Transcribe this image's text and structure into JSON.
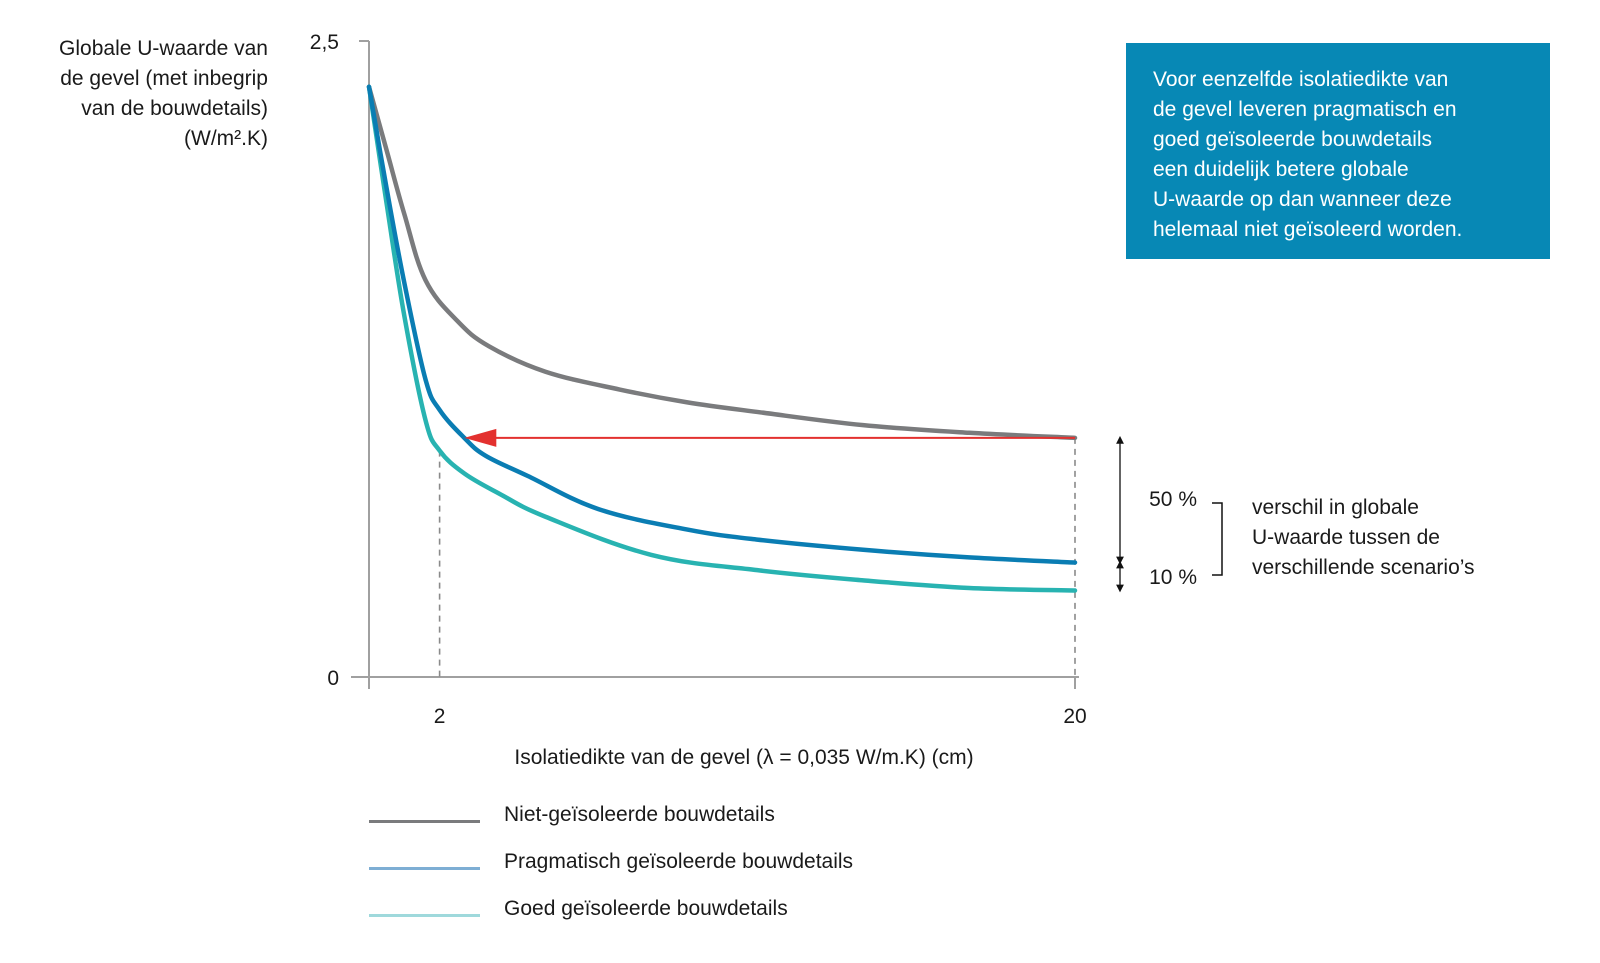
{
  "chart_data": {
    "type": "line",
    "title": "",
    "ylabel_lines": [
      "Globale U-waarde van",
      "de gevel (met inbegrip",
      "van de bouwdetails)",
      "(W/m².K)"
    ],
    "xlabel": "Isolatiedikte van de gevel (λ = 0,035 W/m.K) (cm)",
    "xlim": [
      0,
      20
    ],
    "ylim": [
      0,
      2.5
    ],
    "x_ticks": [
      {
        "value": 2,
        "label": "2"
      },
      {
        "value": 20,
        "label": "20"
      }
    ],
    "y_ticks": [
      {
        "value": 0,
        "label": "0"
      },
      {
        "value": 2.5,
        "label": "2,5"
      }
    ],
    "grid": false,
    "legend_position": "bottom-left",
    "series": [
      {
        "name": "Niet-geïsoleerde bouwdetails",
        "color": "#7a7b7d",
        "legend_color": "#7a7b7d",
        "x": [
          0,
          0.5,
          1.0,
          1.6,
          2.5,
          3.4,
          5.0,
          7.1,
          9.0,
          11.1,
          14.0,
          17.0,
          20.0
        ],
        "y": [
          2.32,
          2.07,
          1.82,
          1.56,
          1.4,
          1.3,
          1.2,
          1.13,
          1.08,
          1.04,
          0.99,
          0.96,
          0.94
        ]
      },
      {
        "name": "Pragmatisch geïsoleerde bouwdetails",
        "color": "#0a7db3",
        "legend_color": "#7eaed4",
        "x": [
          0,
          0.5,
          1.0,
          1.6,
          2.0,
          2.7,
          3.3,
          4.5,
          6.5,
          9.0,
          11.0,
          14.0,
          17.0,
          20.0
        ],
        "y": [
          2.32,
          1.92,
          1.55,
          1.17,
          1.05,
          0.94,
          0.87,
          0.79,
          0.66,
          0.58,
          0.54,
          0.5,
          0.47,
          0.45
        ]
      },
      {
        "name": "Goed geïsoleerde bouwdetails",
        "color": "#28b3b1",
        "legend_color": "#9fd9dc",
        "x": [
          0,
          0.5,
          1.0,
          1.6,
          2.0,
          2.7,
          3.7,
          5.0,
          8.0,
          11.0,
          14.0,
          17.0,
          20.0
        ],
        "y": [
          2.32,
          1.86,
          1.42,
          1.01,
          0.89,
          0.8,
          0.72,
          0.63,
          0.48,
          0.42,
          0.38,
          0.35,
          0.34
        ]
      }
    ],
    "annotations": {
      "arrow": {
        "color": "#e3312f",
        "from": {
          "x": 20,
          "y": 0.94
        },
        "to": {
          "x": 2.7,
          "y": 0.94
        }
      },
      "dashed_guides": [
        {
          "x": 2,
          "y_top": 0.89
        },
        {
          "x": 20,
          "y_top": 0.94
        }
      ],
      "differences": [
        {
          "label": "50 %",
          "from_series": 0,
          "to_series": 1
        },
        {
          "label": "10 %",
          "from_series": 1,
          "to_series": 2
        }
      ],
      "bracket_text": [
        "verschil in globale",
        "U-waarde tussen de",
        "verschillende scenario’s"
      ]
    },
    "info_box": {
      "background": "#0788b5",
      "lines": [
        "Voor eenzelfde isolatiedikte van",
        "de gevel leveren pragmatisch en",
        "goed geïsoleerde bouwdetails",
        "een duidelijk betere globale",
        "U-waarde op dan wanneer deze",
        "helemaal niet geïsoleerd worden."
      ]
    }
  }
}
